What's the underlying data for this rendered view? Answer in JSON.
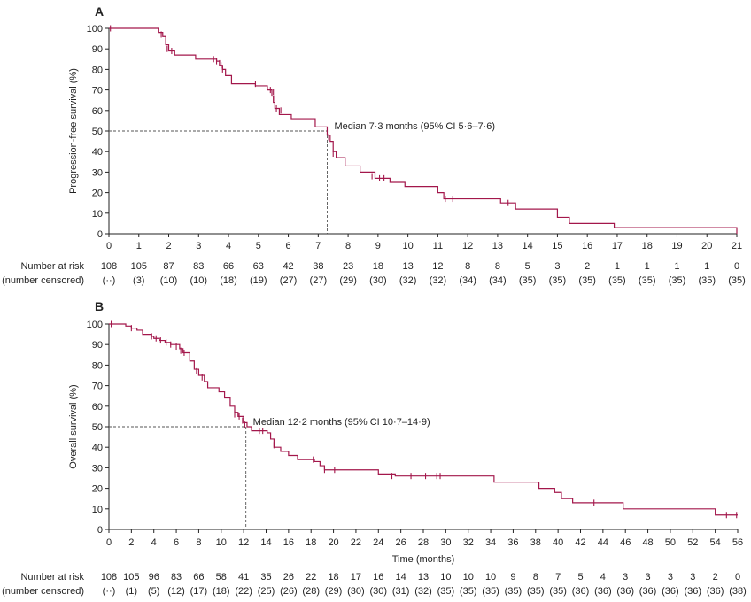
{
  "colors": {
    "curve": "#a3174b",
    "axis": "#222222",
    "dashed": "#555555"
  },
  "chart_data": [
    {
      "type": "line",
      "panel": "A",
      "ylabel": "Progression-free survival (%)",
      "xlabel": "",
      "xlim": [
        0,
        21
      ],
      "ylim": [
        0,
        100
      ],
      "x_ticks": [
        0,
        1,
        2,
        3,
        4,
        5,
        6,
        7,
        8,
        9,
        10,
        11,
        12,
        13,
        14,
        15,
        16,
        17,
        18,
        19,
        20,
        21
      ],
      "y_ticks": [
        0,
        10,
        20,
        30,
        40,
        50,
        60,
        70,
        80,
        90,
        100
      ],
      "series": [
        {
          "name": "Progression-free survival",
          "step": [
            [
              0,
              100
            ],
            [
              1.6,
              100
            ],
            [
              1.65,
              98
            ],
            [
              1.8,
              96
            ],
            [
              1.9,
              92
            ],
            [
              2.0,
              89
            ],
            [
              2.2,
              87
            ],
            [
              2.9,
              85
            ],
            [
              3.6,
              84
            ],
            [
              3.7,
              82
            ],
            [
              3.8,
              80
            ],
            [
              3.9,
              77
            ],
            [
              4.1,
              73
            ],
            [
              4.9,
              72
            ],
            [
              5.3,
              70
            ],
            [
              5.45,
              67
            ],
            [
              5.5,
              64
            ],
            [
              5.55,
              61
            ],
            [
              5.7,
              58
            ],
            [
              6.1,
              56
            ],
            [
              6.9,
              52
            ],
            [
              7.3,
              48
            ],
            [
              7.4,
              45
            ],
            [
              7.5,
              40
            ],
            [
              7.6,
              37
            ],
            [
              7.9,
              33
            ],
            [
              8.4,
              30
            ],
            [
              8.9,
              27
            ],
            [
              9.4,
              25
            ],
            [
              9.9,
              23
            ],
            [
              11.0,
              20
            ],
            [
              11.2,
              17
            ],
            [
              12.3,
              17
            ],
            [
              13.1,
              15
            ],
            [
              13.6,
              12
            ],
            [
              15.0,
              8
            ],
            [
              15.4,
              5
            ],
            [
              16.9,
              3
            ],
            [
              21,
              3
            ],
            [
              21,
              0
            ]
          ],
          "censored": [
            [
              0.05,
              100
            ],
            [
              1.75,
              97
            ],
            [
              1.95,
              90
            ],
            [
              2.1,
              89
            ],
            [
              3.5,
              85
            ],
            [
              3.6,
              84
            ],
            [
              3.7,
              83
            ],
            [
              3.75,
              82
            ],
            [
              3.8,
              80
            ],
            [
              4.9,
              73
            ],
            [
              5.4,
              70
            ],
            [
              5.5,
              69
            ],
            [
              5.55,
              66
            ],
            [
              5.6,
              61
            ],
            [
              5.75,
              60
            ],
            [
              7.35,
              47
            ],
            [
              7.5,
              39
            ],
            [
              8.8,
              28
            ],
            [
              9.05,
              27
            ],
            [
              9.2,
              27
            ],
            [
              11.25,
              17
            ],
            [
              11.5,
              17
            ],
            [
              13.35,
              15
            ]
          ]
        }
      ],
      "median": {
        "x": 7.3,
        "y": 50,
        "label": "Median 7·3 months (95% CI 5·6–7·6)"
      },
      "risk_table": {
        "row1_label": "Number at risk",
        "row2_label": "(number censored)",
        "times": [
          0,
          1,
          2,
          3,
          4,
          5,
          6,
          7,
          8,
          9,
          10,
          11,
          12,
          13,
          14,
          15,
          16,
          17,
          18,
          19,
          20,
          21
        ],
        "at_risk": [
          "108",
          "105",
          "87",
          "83",
          "66",
          "63",
          "42",
          "38",
          "23",
          "18",
          "13",
          "12",
          "8",
          "8",
          "5",
          "3",
          "2",
          "1",
          "1",
          "1",
          "1",
          "0"
        ],
        "censored": [
          "(··)",
          "(3)",
          "(10)",
          "(10)",
          "(18)",
          "(19)",
          "(27)",
          "(27)",
          "(29)",
          "(30)",
          "(32)",
          "(32)",
          "(34)",
          "(34)",
          "(35)",
          "(35)",
          "(35)",
          "(35)",
          "(35)",
          "(35)",
          "(35)",
          "(35)"
        ]
      }
    },
    {
      "type": "line",
      "panel": "B",
      "ylabel": "Overall survival (%)",
      "xlabel": "Time (months)",
      "xlim": [
        0,
        56
      ],
      "ylim": [
        0,
        100
      ],
      "x_ticks": [
        0,
        2,
        4,
        6,
        8,
        10,
        12,
        14,
        16,
        18,
        20,
        22,
        24,
        26,
        28,
        30,
        32,
        34,
        36,
        38,
        40,
        42,
        44,
        46,
        48,
        50,
        52,
        54,
        56
      ],
      "y_ticks": [
        0,
        10,
        20,
        30,
        40,
        50,
        60,
        70,
        80,
        90,
        100
      ],
      "series": [
        {
          "name": "Overall survival",
          "step": [
            [
              0,
              100
            ],
            [
              1.2,
              100
            ],
            [
              1.5,
              99
            ],
            [
              2.0,
              98
            ],
            [
              2.5,
              97
            ],
            [
              3.0,
              95
            ],
            [
              3.8,
              94
            ],
            [
              4.0,
              93
            ],
            [
              4.5,
              92
            ],
            [
              5.0,
              91
            ],
            [
              5.5,
              90
            ],
            [
              6.3,
              88
            ],
            [
              6.6,
              86
            ],
            [
              7.2,
              82
            ],
            [
              7.6,
              78
            ],
            [
              8.0,
              75
            ],
            [
              8.5,
              72
            ],
            [
              8.8,
              69
            ],
            [
              9.8,
              67
            ],
            [
              10.3,
              64
            ],
            [
              10.8,
              60
            ],
            [
              11.2,
              57
            ],
            [
              11.5,
              55
            ],
            [
              12.0,
              52
            ],
            [
              12.3,
              50
            ],
            [
              12.7,
              48
            ],
            [
              14.1,
              47
            ],
            [
              14.4,
              44
            ],
            [
              14.7,
              40
            ],
            [
              15.3,
              38
            ],
            [
              16.0,
              36
            ],
            [
              16.8,
              34
            ],
            [
              18.3,
              33
            ],
            [
              18.8,
              31
            ],
            [
              19.2,
              29
            ],
            [
              24.0,
              27
            ],
            [
              25.5,
              26
            ],
            [
              29.5,
              26
            ],
            [
              34.3,
              23
            ],
            [
              38.0,
              23
            ],
            [
              38.3,
              20
            ],
            [
              39.7,
              18
            ],
            [
              40.3,
              15
            ],
            [
              41.3,
              13
            ],
            [
              45.8,
              10
            ],
            [
              53.8,
              10
            ],
            [
              54.0,
              7
            ],
            [
              56,
              7
            ]
          ],
          "censored": [
            [
              0.2,
              100
            ],
            [
              2.0,
              98
            ],
            [
              3.8,
              94
            ],
            [
              4.2,
              93
            ],
            [
              4.6,
              92
            ],
            [
              5.1,
              91
            ],
            [
              5.5,
              90
            ],
            [
              6.0,
              89
            ],
            [
              6.4,
              87
            ],
            [
              6.7,
              86
            ],
            [
              7.8,
              77
            ],
            [
              8.3,
              74
            ],
            [
              11.2,
              56
            ],
            [
              11.6,
              55
            ],
            [
              11.9,
              53
            ],
            [
              12.1,
              51
            ],
            [
              13.4,
              48
            ],
            [
              13.7,
              48
            ],
            [
              14.7,
              41
            ],
            [
              18.2,
              34
            ],
            [
              19.2,
              29
            ],
            [
              20.1,
              29
            ],
            [
              25.2,
              26
            ],
            [
              26.9,
              26
            ],
            [
              28.2,
              26
            ],
            [
              29.2,
              26
            ],
            [
              29.5,
              26
            ],
            [
              43.2,
              13
            ],
            [
              55.0,
              7
            ],
            [
              55.9,
              7
            ]
          ]
        }
      ],
      "median": {
        "x": 12.2,
        "y": 50,
        "label": "Median 12·2 months (95% CI 10·7–14·9)"
      },
      "risk_table": {
        "row1_label": "Number at risk",
        "row2_label": "(number censored)",
        "times": [
          0,
          2,
          4,
          6,
          8,
          10,
          12,
          14,
          16,
          18,
          20,
          22,
          24,
          26,
          28,
          30,
          32,
          34,
          36,
          38,
          40,
          42,
          44,
          46,
          48,
          50,
          52,
          54,
          56
        ],
        "at_risk": [
          "108",
          "105",
          "96",
          "83",
          "66",
          "58",
          "41",
          "35",
          "26",
          "22",
          "18",
          "17",
          "16",
          "14",
          "13",
          "10",
          "10",
          "10",
          "9",
          "8",
          "7",
          "5",
          "4",
          "3",
          "3",
          "3",
          "3",
          "2",
          "0"
        ],
        "censored": [
          "(··)",
          "(1)",
          "(5)",
          "(12)",
          "(17)",
          "(18)",
          "(22)",
          "(25)",
          "(26)",
          "(28)",
          "(29)",
          "(30)",
          "(30)",
          "(31)",
          "(32)",
          "(35)",
          "(35)",
          "(35)",
          "(35)",
          "(35)",
          "(35)",
          "(36)",
          "(36)",
          "(36)",
          "(36)",
          "(36)",
          "(36)",
          "(36)",
          "(38)"
        ]
      }
    }
  ]
}
